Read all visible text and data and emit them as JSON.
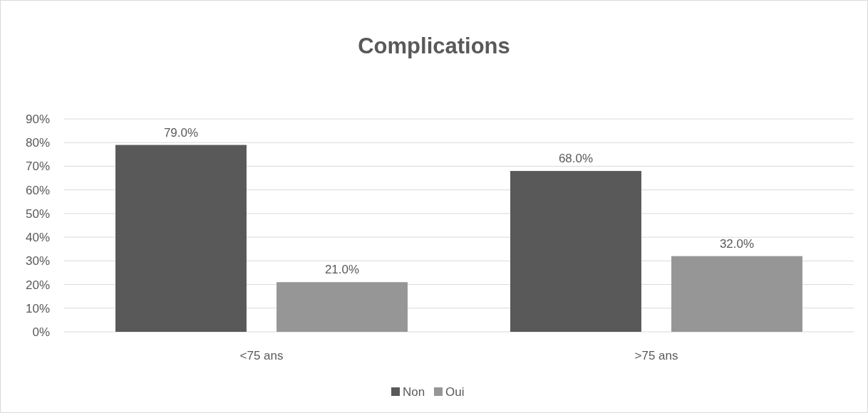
{
  "chart_data": {
    "type": "bar",
    "title": "Complications",
    "categories": [
      "<75 ans",
      ">75 ans"
    ],
    "series": [
      {
        "name": "Non",
        "color": "#595959",
        "values": [
          79,
          68
        ],
        "value_labels": [
          "79.0%",
          "68.0%"
        ]
      },
      {
        "name": "Oui",
        "color": "#969696",
        "values": [
          21,
          32
        ],
        "value_labels": [
          "21.0%",
          "32.0%"
        ]
      }
    ],
    "ylim": [
      0,
      90
    ],
    "yticks": [
      {
        "value": 0,
        "label": "0%"
      },
      {
        "value": 10,
        "label": "10%"
      },
      {
        "value": 20,
        "label": "20%"
      },
      {
        "value": 30,
        "label": "30%"
      },
      {
        "value": 40,
        "label": "40%"
      },
      {
        "value": 50,
        "label": "50%"
      },
      {
        "value": 60,
        "label": "60%"
      },
      {
        "value": 70,
        "label": "70%"
      },
      {
        "value": 80,
        "label": "80%"
      },
      {
        "value": 90,
        "label": "90%"
      }
    ],
    "grid": "y",
    "legend": "bottom"
  }
}
